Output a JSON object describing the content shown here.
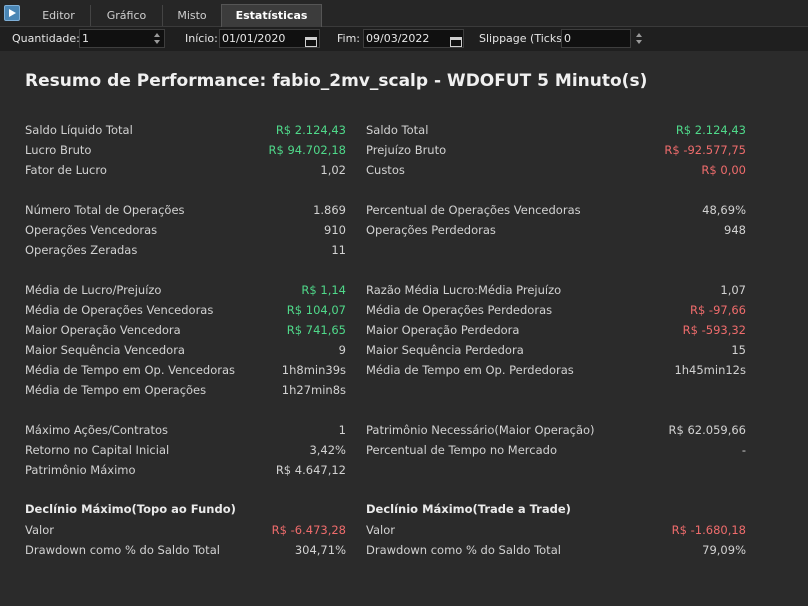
{
  "tabs": [
    "Editor",
    "Gráfico",
    "Misto",
    "Estatísticas"
  ],
  "toolbar": {
    "quantidade_label": "Quantidade:",
    "quantidade_value": "1",
    "inicio_label": "Início:",
    "inicio_value": "01/01/2020",
    "fim_label": "Fim:",
    "fim_value": "09/03/2022",
    "slippage_label": "Slippage (Ticks):",
    "slippage_value": "0"
  },
  "title": "Resumo de Performance: fabio_2mv_scalp - WDOFUT 5 Minuto(s)",
  "left": [
    {
      "label": "Saldo Líquido Total",
      "value": "R$ 2.124,43",
      "tone": "pos"
    },
    {
      "label": "Lucro Bruto",
      "value": "R$ 94.702,18",
      "tone": "pos"
    },
    {
      "label": "Fator de Lucro",
      "value": "1,02",
      "tone": ""
    },
    {
      "label": "Número Total de Operações",
      "value": "1.869",
      "tone": ""
    },
    {
      "label": "Operações Vencedoras",
      "value": "910",
      "tone": ""
    },
    {
      "label": "Operações Zeradas",
      "value": "11",
      "tone": ""
    },
    {
      "label": "Média de Lucro/Prejuízo",
      "value": "R$ 1,14",
      "tone": "pos"
    },
    {
      "label": "Média de Operações Vencedoras",
      "value": "R$ 104,07",
      "tone": "pos"
    },
    {
      "label": "Maior Operação Vencedora",
      "value": "R$ 741,65",
      "tone": "pos"
    },
    {
      "label": "Maior Sequência Vencedora",
      "value": "9",
      "tone": ""
    },
    {
      "label": "Média de Tempo em Op. Vencedoras",
      "value": "1h8min39s",
      "tone": ""
    },
    {
      "label": "Média de Tempo em Operações",
      "value": "1h27min8s",
      "tone": ""
    },
    {
      "label": "Máximo Ações/Contratos",
      "value": "1",
      "tone": ""
    },
    {
      "label": "Retorno no Capital Inicial",
      "value": "3,42%",
      "tone": ""
    },
    {
      "label": "Patrimônio Máximo",
      "value": "R$ 4.647,12",
      "tone": ""
    },
    {
      "label": "Valor",
      "value": "R$ -6.473,28",
      "tone": "neg"
    },
    {
      "label": "Drawdown como % do Saldo Total",
      "value": "304,71%",
      "tone": ""
    }
  ],
  "right": [
    {
      "label": "Saldo Total",
      "value": "R$ 2.124,43",
      "tone": "pos"
    },
    {
      "label": "Prejuízo Bruto",
      "value": "R$ -92.577,75",
      "tone": "neg"
    },
    {
      "label": "Custos",
      "value": "R$ 0,00",
      "tone": "neg"
    },
    {
      "label": "Percentual de Operações Vencedoras",
      "value": "48,69%",
      "tone": ""
    },
    {
      "label": "Operações Perdedoras",
      "value": "948",
      "tone": ""
    },
    {
      "label": "Razão Média Lucro:Média Prejuízo",
      "value": "1,07",
      "tone": ""
    },
    {
      "label": "Média de Operações Perdedoras",
      "value": "R$ -97,66",
      "tone": "neg"
    },
    {
      "label": "Maior Operação Perdedora",
      "value": "R$ -593,32",
      "tone": "neg"
    },
    {
      "label": "Maior Sequência Perdedora",
      "value": "15",
      "tone": ""
    },
    {
      "label": "Média de Tempo em Op. Perdedoras",
      "value": "1h45min12s",
      "tone": ""
    },
    {
      "label": "Patrimônio Necessário(Maior Operação)",
      "value": "R$ 62.059,66",
      "tone": ""
    },
    {
      "label": "Percentual de Tempo no Mercado",
      "value": "-",
      "tone": ""
    },
    {
      "label": "Valor",
      "value": "R$ -1.680,18",
      "tone": "neg"
    },
    {
      "label": "Drawdown como % do Saldo Total",
      "value": "79,09%",
      "tone": ""
    }
  ],
  "sections": {
    "left_drawdown": "Declínio Máximo(Topo ao Fundo)",
    "right_drawdown": "Declínio Máximo(Trade a Trade)"
  }
}
